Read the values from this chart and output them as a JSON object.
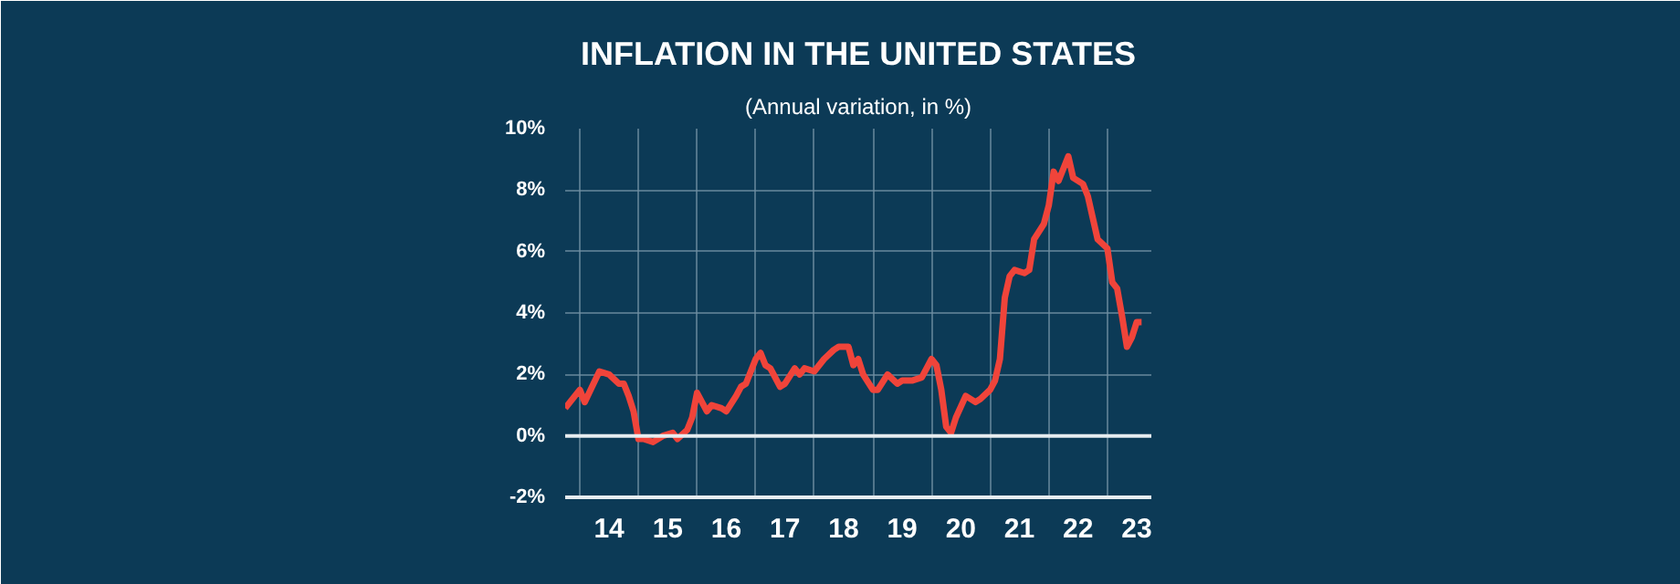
{
  "chart_data": {
    "type": "line",
    "title": "INFLATION IN THE UNITED STATES",
    "subtitle": "(Annual variation, in %)",
    "x": [
      "2013-10",
      "2014-01",
      "2014-02",
      "2014-05",
      "2014-07",
      "2014-09",
      "2014-10",
      "2014-11",
      "2014-12",
      "2015-01",
      "2015-02",
      "2015-04",
      "2015-06",
      "2015-08",
      "2015-09",
      "2015-11",
      "2015-12",
      "2016-01",
      "2016-03",
      "2016-04",
      "2016-06",
      "2016-07",
      "2016-09",
      "2016-10",
      "2016-11",
      "2017-01",
      "2017-02",
      "2017-03",
      "2017-04",
      "2017-06",
      "2017-07",
      "2017-09",
      "2017-10",
      "2017-11",
      "2018-01",
      "2018-03",
      "2018-05",
      "2018-06",
      "2018-08",
      "2018-09",
      "2018-10",
      "2018-11",
      "2019-01",
      "2019-02",
      "2019-04",
      "2019-06",
      "2019-07",
      "2019-09",
      "2019-11",
      "2020-01",
      "2020-02",
      "2020-03",
      "2020-04",
      "2020-05",
      "2020-06",
      "2020-08",
      "2020-10",
      "2020-11",
      "2021-01",
      "2021-02",
      "2021-03",
      "2021-04",
      "2021-05",
      "2021-06",
      "2021-08",
      "2021-09",
      "2021-10",
      "2021-12",
      "2022-01",
      "2022-02",
      "2022-03",
      "2022-05",
      "2022-06",
      "2022-08",
      "2022-09",
      "2022-10",
      "2022-11",
      "2023-01",
      "2023-02",
      "2023-03",
      "2023-04",
      "2023-05",
      "2023-06",
      "2023-07",
      "2023-08"
    ],
    "series": [
      {
        "color": "#f0443a",
        "values": [
          0.9,
          1.5,
          1.1,
          2.1,
          2.0,
          1.7,
          1.7,
          1.3,
          0.8,
          -0.1,
          -0.1,
          -0.2,
          0.0,
          0.1,
          -0.1,
          0.2,
          0.6,
          1.4,
          0.8,
          1.0,
          0.9,
          0.8,
          1.3,
          1.6,
          1.7,
          2.5,
          2.7,
          2.3,
          2.2,
          1.6,
          1.7,
          2.2,
          2.0,
          2.2,
          2.1,
          2.5,
          2.8,
          2.9,
          2.9,
          2.3,
          2.5,
          2.0,
          1.5,
          1.5,
          2.0,
          1.7,
          1.8,
          1.8,
          1.9,
          2.5,
          2.3,
          1.5,
          0.3,
          0.1,
          0.6,
          1.3,
          1.1,
          1.2,
          1.5,
          1.8,
          2.5,
          4.5,
          5.2,
          5.4,
          5.3,
          5.4,
          6.4,
          6.9,
          7.5,
          8.6,
          8.3,
          9.1,
          8.4,
          8.2,
          7.8,
          7.1,
          6.4,
          6.1,
          5.0,
          4.8,
          3.9,
          2.9,
          3.2,
          3.7,
          3.7
        ]
      }
    ],
    "xlim": [
      "2013-10",
      "2023-10"
    ],
    "xticks": [
      {
        "value": "2014-01",
        "label": null
      },
      {
        "value": "2014-07",
        "label": "14"
      },
      {
        "value": "2015-01",
        "label": null
      },
      {
        "value": "2015-07",
        "label": "15"
      },
      {
        "value": "2016-01",
        "label": null
      },
      {
        "value": "2016-07",
        "label": "16"
      },
      {
        "value": "2017-01",
        "label": null
      },
      {
        "value": "2017-07",
        "label": "17"
      },
      {
        "value": "2018-01",
        "label": null
      },
      {
        "value": "2018-07",
        "label": "18"
      },
      {
        "value": "2019-01",
        "label": null
      },
      {
        "value": "2019-07",
        "label": "19"
      },
      {
        "value": "2020-01",
        "label": null
      },
      {
        "value": "2020-07",
        "label": "20"
      },
      {
        "value": "2021-01",
        "label": null
      },
      {
        "value": "2021-07",
        "label": "21"
      },
      {
        "value": "2022-01",
        "label": null
      },
      {
        "value": "2022-07",
        "label": "22"
      },
      {
        "value": "2023-01",
        "label": null
      },
      {
        "value": "2023-07",
        "label": "23"
      }
    ],
    "ylim": [
      -2,
      10
    ],
    "yticks": [
      {
        "value": -2,
        "label": "-2%"
      },
      {
        "value": 0,
        "label": "0%"
      },
      {
        "value": 2,
        "label": "2%"
      },
      {
        "value": 4,
        "label": "4%"
      },
      {
        "value": 6,
        "label": "6%"
      },
      {
        "value": 8,
        "label": "8%"
      },
      {
        "value": 10,
        "label": "10%"
      }
    ],
    "ref_lines": [
      {
        "axis": "y",
        "value": 0,
        "label": null,
        "color": "#e6ecf0"
      }
    ],
    "grid": true,
    "marker": "none",
    "line_style": "solid"
  }
}
